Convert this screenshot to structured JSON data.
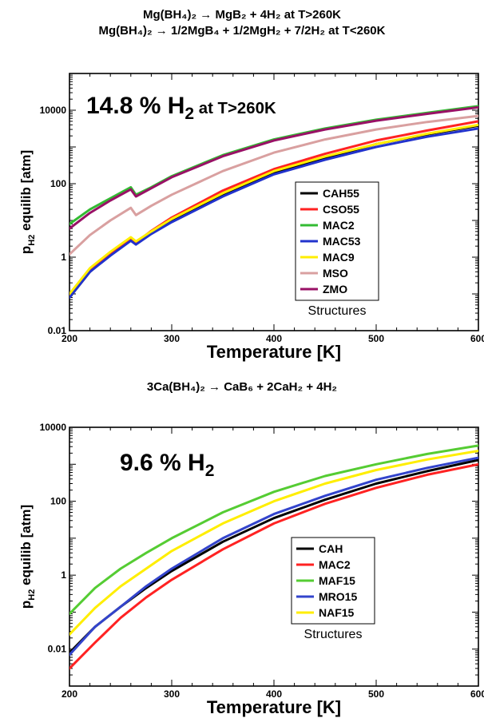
{
  "chart1": {
    "eq_line1": "Mg(BH₄)₂ → MgB₂ + 4H₂ at T>260K",
    "eq_line2": "Mg(BH₄)₂ → 1/2MgB₄ + 1/2MgH₂ + 7/2H₂ at T<260K"
  },
  "chart2": {
    "eq_line1": "3Ca(BH₄)₂ → CaB₆ + 2CaH₂ + 4H₂"
  },
  "chart_data": [
    {
      "type": "line",
      "title": "",
      "annotation": {
        "main": "14.8 % H",
        "sub": "2",
        "tail": " at T>260K"
      },
      "xlabel": "Temperature [K]",
      "ylabel": {
        "main": "p",
        "sub": "H2",
        "tail": " equilib [atm]"
      },
      "xlim": [
        200,
        600
      ],
      "ylim": [
        0.01,
        100000
      ],
      "yscale": "log",
      "xticks": [
        200,
        300,
        400,
        500,
        600
      ],
      "yticks": [
        0.01,
        1,
        100,
        10000
      ],
      "ytick_labels": [
        "0.01",
        "1",
        "100",
        "10000"
      ],
      "legend_title": "Structures",
      "legend_position": "center-right",
      "x": [
        200,
        220,
        240,
        260,
        265,
        280,
        300,
        350,
        400,
        450,
        500,
        550,
        600
      ],
      "series": [
        {
          "name": "CAH55",
          "color": "#000000",
          "values": [
            0.08,
            0.4,
            1.2,
            3.0,
            2.3,
            4.5,
            10,
            50,
            200,
            500,
            1200,
            2200,
            3800
          ]
        },
        {
          "name": "CSO55",
          "color": "#ff2222",
          "values": [
            0.09,
            0.45,
            1.3,
            3.2,
            2.5,
            5.2,
            12,
            65,
            250,
            650,
            1500,
            2800,
            5000
          ]
        },
        {
          "name": "MAC2",
          "color": "#33bb33",
          "values": [
            8,
            20,
            40,
            80,
            50,
            80,
            160,
            600,
            1600,
            3200,
            5500,
            8500,
            13000
          ]
        },
        {
          "name": "MAC53",
          "color": "#2233cc",
          "values": [
            0.08,
            0.4,
            1.1,
            2.8,
            2.2,
            4.3,
            9,
            45,
            180,
            450,
            1000,
            1900,
            3200
          ]
        },
        {
          "name": "MAC9",
          "color": "#ffee00",
          "values": [
            0.1,
            0.5,
            1.4,
            3.5,
            2.7,
            5.0,
            11,
            55,
            220,
            550,
            1200,
            2300,
            4000
          ]
        },
        {
          "name": "MSO",
          "color": "#d9a0a0",
          "values": [
            1.2,
            4.0,
            10,
            22,
            14,
            25,
            50,
            220,
            700,
            1600,
            3000,
            4800,
            7000
          ]
        },
        {
          "name": "ZMO",
          "color": "#991166",
          "values": [
            6,
            16,
            35,
            70,
            45,
            75,
            150,
            560,
            1500,
            3000,
            5200,
            8000,
            12000
          ]
        }
      ]
    },
    {
      "type": "line",
      "title": "",
      "annotation": {
        "main": "9.6 % H",
        "sub": "2",
        "tail": ""
      },
      "xlabel": "Temperature [K]",
      "ylabel": {
        "main": "p",
        "sub": "H2",
        "tail": " equilib [atm]"
      },
      "xlim": [
        200,
        600
      ],
      "ylim": [
        0.001,
        10000
      ],
      "yscale": "log",
      "xticks": [
        200,
        300,
        400,
        500,
        600
      ],
      "yticks": [
        0.01,
        1,
        100,
        10000
      ],
      "ytick_labels": [
        "0.01",
        "1",
        "100",
        "10000"
      ],
      "legend_title": "Structures",
      "legend_position": "lower-right",
      "x": [
        200,
        225,
        250,
        275,
        300,
        350,
        400,
        450,
        500,
        550,
        600
      ],
      "series": [
        {
          "name": "CAH",
          "color": "#000000",
          "values": [
            0.008,
            0.04,
            0.14,
            0.45,
            1.3,
            8,
            35,
            110,
            300,
            650,
            1300
          ]
        },
        {
          "name": "MAC2",
          "color": "#ff2222",
          "values": [
            0.003,
            0.015,
            0.07,
            0.25,
            0.75,
            5,
            25,
            85,
            230,
            520,
            1000
          ]
        },
        {
          "name": "MAF15",
          "color": "#55cc33",
          "values": [
            0.09,
            0.45,
            1.5,
            4.0,
            10,
            50,
            180,
            480,
            1000,
            1900,
            3200
          ]
        },
        {
          "name": "MRO15",
          "color": "#3344cc",
          "values": [
            0.007,
            0.04,
            0.14,
            0.5,
            1.5,
            10,
            45,
            140,
            380,
            800,
            1500
          ]
        },
        {
          "name": "NAF15",
          "color": "#ffee00",
          "values": [
            0.025,
            0.13,
            0.5,
            1.5,
            4.5,
            25,
            100,
            300,
            700,
            1350,
            2300
          ]
        }
      ]
    }
  ]
}
